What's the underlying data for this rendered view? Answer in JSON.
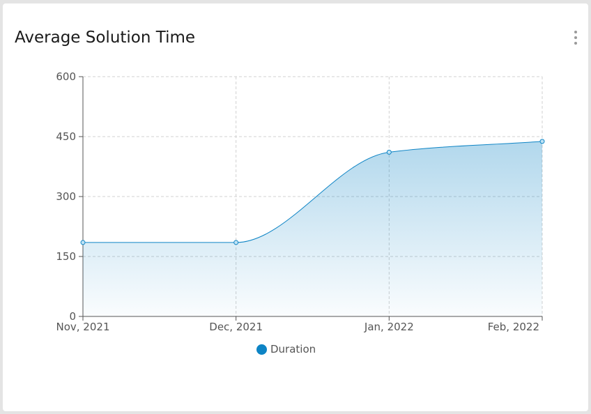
{
  "card": {
    "title": "Average Solution Time",
    "menu_icon": "more-vertical-icon"
  },
  "chart_data": {
    "type": "area",
    "title": "Average Solution Time",
    "x": [
      "Nov, 2021",
      "Dec, 2021",
      "Jan, 2022",
      "Feb, 2022"
    ],
    "series": [
      {
        "name": "Duration",
        "values": [
          185,
          185,
          411,
          438
        ]
      }
    ],
    "ylim": [
      0,
      600
    ],
    "yticks": [
      0,
      150,
      300,
      450,
      600
    ],
    "xlabel": "",
    "ylabel": "",
    "grid": true,
    "legend_position": "bottom-center",
    "curve": "smooth",
    "color": "#0d84c5"
  }
}
